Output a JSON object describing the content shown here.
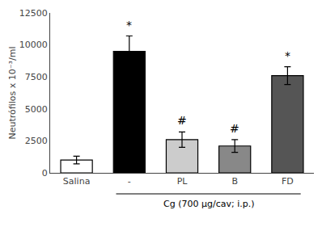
{
  "chart_data": {
    "type": "bar",
    "categories": [
      "Salina",
      "-",
      "PL",
      "B",
      "FD"
    ],
    "values": [
      1000,
      9500,
      2600,
      2100,
      7600
    ],
    "errors": [
      300,
      1200,
      600,
      500,
      700
    ],
    "colors": [
      "#ffffff",
      "#000000",
      "#cccccc",
      "#888888",
      "#555555"
    ],
    "ylabel": "Neutrófilos x 10⁻³/ml",
    "ylim": [
      0,
      12500
    ],
    "yticks": [
      0,
      2500,
      5000,
      7500,
      10000,
      12500
    ],
    "grid": false,
    "annotations": [
      {
        "category": "-",
        "text": "*"
      },
      {
        "category": "PL",
        "text": "#"
      },
      {
        "category": "B",
        "text": "#"
      },
      {
        "category": "FD",
        "text": "*"
      },
      {
        "span": [
          "-",
          "FD"
        ],
        "text": "Cg (700 μg/cav; i.p.)"
      }
    ]
  }
}
